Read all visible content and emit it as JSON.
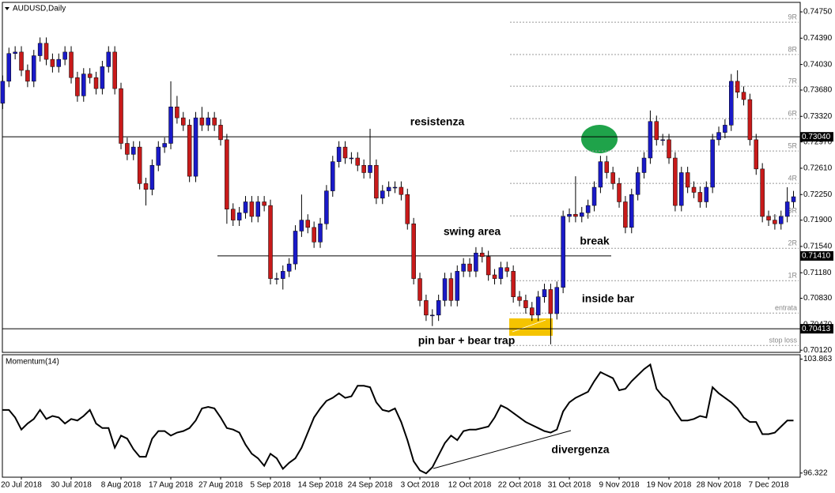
{
  "chart_data": [
    {
      "type": "candlestick",
      "title": "AUDUSD,Daily",
      "up_color": "#1a1ac8",
      "down_color": "#c81a1a",
      "open": [
        0.735,
        0.738,
        0.7418,
        0.742,
        0.7395,
        0.738,
        0.7415,
        0.7432,
        0.741,
        0.74,
        0.741,
        0.742,
        0.7385,
        0.736,
        0.739,
        0.7385,
        0.737,
        0.74,
        0.742,
        0.737,
        0.7295,
        0.728,
        0.729,
        0.724,
        0.7232,
        0.7265,
        0.729,
        0.7295,
        0.7345,
        0.733,
        0.732,
        0.725,
        0.733,
        0.732,
        0.733,
        0.732,
        0.73,
        0.7205,
        0.719,
        0.72,
        0.7215,
        0.7195,
        0.7215,
        0.721,
        0.711,
        0.711,
        0.712,
        0.713,
        0.7175,
        0.719,
        0.718,
        0.716,
        0.7185,
        0.723,
        0.727,
        0.729,
        0.7275,
        0.7275,
        0.7265,
        0.7255,
        0.7265,
        0.722,
        0.723,
        0.7235,
        0.7235,
        0.7225,
        0.7185,
        0.711,
        0.708,
        0.706,
        0.706,
        0.708,
        0.711,
        0.708,
        0.712,
        0.713,
        0.712,
        0.7145,
        0.714,
        0.7115,
        0.711,
        0.7125,
        0.712,
        0.7085,
        0.708,
        0.707,
        0.706,
        0.7085,
        0.7095,
        0.7062,
        0.7098,
        0.7195,
        0.7198,
        0.7195,
        0.72,
        0.721,
        0.7235,
        0.727,
        0.7255,
        0.724,
        0.7215,
        0.718,
        0.7225,
        0.7255,
        0.7275,
        0.7325,
        0.73,
        0.73,
        0.7275,
        0.721,
        0.7255,
        0.7235,
        0.7228,
        0.7215,
        0.7235,
        0.73,
        0.731,
        0.732,
        0.738,
        0.7365,
        0.7355,
        0.73,
        0.726,
        0.7195,
        0.719,
        0.7185,
        0.7195,
        0.7215
      ],
      "high": [
        0.7388,
        0.7426,
        0.7428,
        0.7428,
        0.7403,
        0.7423,
        0.744,
        0.744,
        0.7418,
        0.7418,
        0.7428,
        0.7428,
        0.7393,
        0.7398,
        0.7398,
        0.7393,
        0.7408,
        0.7428,
        0.7428,
        0.7378,
        0.7303,
        0.7298,
        0.7298,
        0.7248,
        0.7273,
        0.7298,
        0.7303,
        0.738,
        0.736,
        0.7338,
        0.7328,
        0.7338,
        0.7345,
        0.7338,
        0.7338,
        0.7328,
        0.7308,
        0.7213,
        0.7208,
        0.7223,
        0.7223,
        0.7223,
        0.7223,
        0.7218,
        0.7118,
        0.7128,
        0.7138,
        0.7183,
        0.7225,
        0.7198,
        0.7188,
        0.7193,
        0.7238,
        0.7278,
        0.7298,
        0.7298,
        0.7283,
        0.7283,
        0.7273,
        0.7315,
        0.7273,
        0.7238,
        0.7243,
        0.7243,
        0.7243,
        0.7233,
        0.7193,
        0.7118,
        0.7088,
        0.7068,
        0.7088,
        0.7118,
        0.7118,
        0.7128,
        0.7138,
        0.7138,
        0.7153,
        0.7153,
        0.7148,
        0.7123,
        0.7133,
        0.7133,
        0.7128,
        0.7093,
        0.7088,
        0.7078,
        0.7093,
        0.7103,
        0.7103,
        0.7106,
        0.7203,
        0.7206,
        0.725,
        0.7208,
        0.7218,
        0.7243,
        0.7278,
        0.7278,
        0.7263,
        0.7248,
        0.7223,
        0.7233,
        0.7263,
        0.7283,
        0.734,
        0.7333,
        0.7308,
        0.7308,
        0.7283,
        0.7263,
        0.7263,
        0.7243,
        0.7236,
        0.7243,
        0.7308,
        0.7318,
        0.7328,
        0.739,
        0.7395,
        0.7373,
        0.7363,
        0.7308,
        0.7268,
        0.7203,
        0.7198,
        0.7203,
        0.7235,
        0.723
      ],
      "low": [
        0.7342,
        0.7372,
        0.741,
        0.7387,
        0.7372,
        0.7372,
        0.7407,
        0.7402,
        0.7392,
        0.7392,
        0.7402,
        0.7377,
        0.7352,
        0.7352,
        0.7377,
        0.7362,
        0.7362,
        0.7392,
        0.7362,
        0.7287,
        0.7272,
        0.7272,
        0.7232,
        0.721,
        0.7224,
        0.7257,
        0.7282,
        0.7287,
        0.7322,
        0.7312,
        0.7242,
        0.7242,
        0.7312,
        0.7312,
        0.7312,
        0.7292,
        0.7185,
        0.7182,
        0.7182,
        0.7192,
        0.7187,
        0.7187,
        0.7202,
        0.7102,
        0.7102,
        0.7095,
        0.7112,
        0.7122,
        0.7167,
        0.7172,
        0.7152,
        0.7152,
        0.7177,
        0.7222,
        0.7262,
        0.7267,
        0.7267,
        0.7257,
        0.7247,
        0.7247,
        0.7212,
        0.7212,
        0.7222,
        0.7227,
        0.7217,
        0.7177,
        0.7102,
        0.7072,
        0.7052,
        0.7045,
        0.7052,
        0.7072,
        0.7072,
        0.7072,
        0.7112,
        0.7112,
        0.7112,
        0.7132,
        0.7107,
        0.7102,
        0.7102,
        0.7112,
        0.7077,
        0.7072,
        0.7062,
        0.7052,
        0.7052,
        0.7077,
        0.702,
        0.7054,
        0.709,
        0.7187,
        0.7187,
        0.7187,
        0.7192,
        0.7202,
        0.7227,
        0.7247,
        0.7232,
        0.7207,
        0.7172,
        0.7172,
        0.7217,
        0.7247,
        0.7267,
        0.7292,
        0.7292,
        0.7267,
        0.7202,
        0.7202,
        0.7227,
        0.722,
        0.7207,
        0.7207,
        0.7227,
        0.7292,
        0.7302,
        0.7312,
        0.7357,
        0.7347,
        0.7292,
        0.7252,
        0.7187,
        0.7182,
        0.7177,
        0.7177,
        0.7187,
        0.7207
      ],
      "close": [
        0.738,
        0.7418,
        0.742,
        0.7395,
        0.738,
        0.7415,
        0.7432,
        0.741,
        0.74,
        0.741,
        0.742,
        0.7385,
        0.736,
        0.739,
        0.7385,
        0.737,
        0.74,
        0.742,
        0.737,
        0.7295,
        0.728,
        0.729,
        0.724,
        0.7232,
        0.7265,
        0.729,
        0.7295,
        0.7345,
        0.733,
        0.732,
        0.725,
        0.733,
        0.732,
        0.733,
        0.732,
        0.73,
        0.7205,
        0.719,
        0.72,
        0.7215,
        0.7195,
        0.7215,
        0.721,
        0.711,
        0.711,
        0.712,
        0.713,
        0.7175,
        0.719,
        0.718,
        0.716,
        0.7185,
        0.723,
        0.727,
        0.729,
        0.7275,
        0.7275,
        0.7265,
        0.7255,
        0.7265,
        0.722,
        0.723,
        0.7235,
        0.7235,
        0.7225,
        0.7185,
        0.711,
        0.708,
        0.706,
        0.706,
        0.708,
        0.711,
        0.708,
        0.712,
        0.713,
        0.712,
        0.7145,
        0.714,
        0.7115,
        0.711,
        0.7125,
        0.712,
        0.7085,
        0.708,
        0.707,
        0.706,
        0.7085,
        0.7095,
        0.7062,
        0.7098,
        0.7195,
        0.7198,
        0.7195,
        0.72,
        0.721,
        0.7235,
        0.727,
        0.7255,
        0.724,
        0.7215,
        0.718,
        0.7225,
        0.7255,
        0.7275,
        0.7325,
        0.73,
        0.73,
        0.7275,
        0.721,
        0.7255,
        0.7235,
        0.7228,
        0.7215,
        0.7235,
        0.73,
        0.731,
        0.732,
        0.738,
        0.7365,
        0.7355,
        0.73,
        0.726,
        0.7195,
        0.719,
        0.7185,
        0.7195,
        0.7215,
        0.7222
      ],
      "ylim": [
        0.7009,
        0.7488
      ],
      "yticks": [
        {
          "value": 0.7475,
          "label": "0.74750"
        },
        {
          "value": 0.7439,
          "label": "0.74390"
        },
        {
          "value": 0.7403,
          "label": "0.74030"
        },
        {
          "value": 0.7368,
          "label": "0.73680"
        },
        {
          "value": 0.7332,
          "label": "0.73320"
        },
        {
          "value": 0.7297,
          "label": "0.72970"
        },
        {
          "value": 0.7261,
          "label": "0.72610"
        },
        {
          "value": 0.7225,
          "label": "0.72250"
        },
        {
          "value": 0.719,
          "label": "0.71900"
        },
        {
          "value": 0.7154,
          "label": "0.71540"
        },
        {
          "value": 0.7118,
          "label": "0.71180"
        },
        {
          "value": 0.7083,
          "label": "0.70830"
        },
        {
          "value": 0.7047,
          "label": "0.70470"
        },
        {
          "value": 0.7012,
          "label": "0.70120"
        }
      ],
      "hlines": [
        {
          "value": 0.7304,
          "label": "0.73040"
        },
        {
          "value": 0.7141,
          "label": "0.71410"
        },
        {
          "value": 0.70413,
          "label": "0.70413"
        }
      ],
      "levels": [
        {
          "value": 0.74609,
          "label": "9R"
        },
        {
          "value": 0.74166,
          "label": "8R"
        },
        {
          "value": 0.73733,
          "label": "7R"
        },
        {
          "value": 0.73289,
          "label": "6R"
        },
        {
          "value": 0.72846,
          "label": "5R"
        },
        {
          "value": 0.72402,
          "label": "4R"
        },
        {
          "value": 0.71958,
          "label": "3R"
        },
        {
          "value": 0.71515,
          "label": "2R"
        },
        {
          "value": 0.71071,
          "label": "1R"
        },
        {
          "value": 0.70628,
          "label": "entrata"
        },
        {
          "value": 0.70184,
          "label": "stop loss"
        }
      ],
      "annotations": [
        "resistenza",
        "swing area",
        "break",
        "inside bar",
        "pin bar + bear trap"
      ]
    },
    {
      "type": "line",
      "title": "Momentum(14)",
      "color": "#000000",
      "values": [
        100.5,
        100.5,
        100.0,
        99.2,
        99.6,
        99.9,
        100.5,
        99.9,
        100.1,
        100.0,
        99.6,
        99.9,
        99.8,
        100.1,
        100.5,
        99.6,
        99.3,
        99.3,
        98.0,
        98.8,
        98.6,
        97.9,
        97.4,
        97.4,
        98.6,
        99.1,
        99.1,
        98.8,
        99.0,
        99.1,
        99.3,
        99.8,
        100.6,
        100.7,
        100.6,
        100.0,
        99.3,
        99.2,
        99.0,
        98.2,
        97.6,
        97.3,
        96.8,
        97.6,
        97.3,
        96.6,
        97.0,
        97.3,
        98.0,
        99.0,
        100.0,
        100.6,
        101.1,
        101.3,
        101.6,
        101.3,
        101.4,
        102.1,
        102.1,
        102.0,
        101.0,
        100.5,
        100.4,
        100.6,
        99.7,
        98.5,
        97.1,
        96.5,
        96.3,
        96.7,
        97.5,
        98.3,
        98.8,
        98.5,
        99.1,
        99.2,
        99.2,
        99.3,
        99.4,
        100.0,
        100.8,
        100.6,
        100.3,
        100.0,
        99.7,
        99.5,
        99.3,
        99.1,
        99.0,
        99.2,
        100.4,
        101.0,
        101.3,
        101.5,
        101.7,
        102.4,
        103.0,
        102.8,
        102.6,
        101.8,
        101.9,
        102.4,
        102.8,
        103.2,
        103.5,
        101.9,
        101.4,
        101.1,
        100.4,
        99.8,
        99.8,
        99.9,
        100.1,
        100.0,
        102.0,
        101.6,
        101.3,
        101.0,
        100.6,
        100.0,
        99.7,
        99.7,
        98.9,
        98.9,
        99.0,
        99.4,
        99.8,
        99.8
      ],
      "ylim": [
        96.1,
        104.1
      ],
      "yticks": [
        103.863,
        96.322
      ],
      "categories": [
        null,
        null,
        null,
        "20 Jul 2018",
        null,
        null,
        null,
        null,
        null,
        null,
        null,
        "30 Jul 2018",
        null,
        null,
        null,
        null,
        null,
        null,
        null,
        "8 Aug 2018",
        null,
        null,
        null,
        null,
        null,
        null,
        null,
        "17 Aug 2018",
        null,
        null,
        null,
        null,
        null,
        null,
        null,
        "27 Aug 2018",
        null,
        null,
        null,
        null,
        null,
        null,
        null,
        "5 Sep 2018",
        null,
        null,
        null,
        null,
        null,
        null,
        null,
        "14 Sep 2018",
        null,
        null,
        null,
        null,
        null,
        null,
        null,
        "24 Sep 2018",
        null,
        null,
        null,
        null,
        null,
        null,
        null,
        "3 Oct 2018",
        null,
        null,
        null,
        null,
        null,
        null,
        null,
        "12 Oct 2018",
        null,
        null,
        null,
        null,
        null,
        null,
        null,
        "22 Oct 2018",
        null,
        null,
        null,
        null,
        null,
        null,
        null,
        "31 Oct 2018",
        null,
        null,
        null,
        null,
        null,
        null,
        null,
        "9 Nov 2018",
        null,
        null,
        null,
        null,
        null,
        null,
        null,
        "19 Nov 2018",
        null,
        null,
        null,
        null,
        null,
        null,
        null,
        "28 Nov 2018",
        null,
        null,
        null,
        null,
        null,
        null,
        null,
        "7 Dec 2018",
        null,
        null,
        null,
        null
      ],
      "annotation": "divergenza"
    }
  ]
}
